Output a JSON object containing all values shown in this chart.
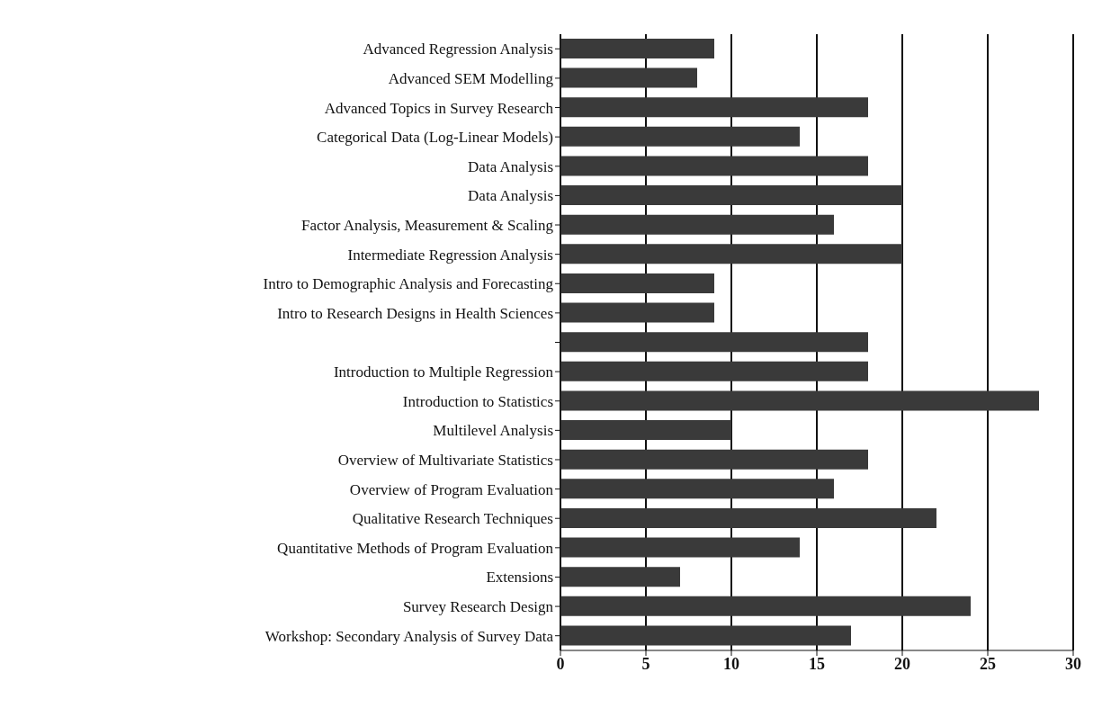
{
  "chart_data": {
    "type": "bar",
    "orientation": "horizontal",
    "categories": [
      "Advanced Regression Analysis",
      "Advanced SEM Modelling",
      "Advanced Topics in Survey Research",
      "Categorical Data (Log-Linear Models)",
      "Data Analysis",
      "Data Analysis",
      "Factor Analysis, Measurement & Scaling",
      "Intermediate Regression Analysis",
      "Intro to Demographic Analysis and Forecasting",
      "Intro to Research Designs in Health Sciences",
      null,
      "Introduction to Multiple Regression",
      "Introduction to Statistics",
      "Multilevel Analysis",
      "Overview of Multivariate Statistics",
      "Overview of Program Evaluation",
      "Qualitative Research Techniques",
      "Quantitative Methods of Program Evaluation",
      "Extensions",
      "Survey Research Design",
      "Workshop: Secondary Analysis of Survey Data"
    ],
    "values": [
      9,
      8,
      18,
      14,
      18,
      20,
      16,
      20,
      9,
      9,
      18,
      18,
      28,
      10,
      18,
      16,
      22,
      14,
      7,
      24,
      17
    ],
    "color": "#3a3a3a",
    "xlim": [
      0,
      30
    ],
    "xticks": [
      0,
      5,
      10,
      15,
      20,
      25,
      30
    ],
    "grid": "x"
  }
}
